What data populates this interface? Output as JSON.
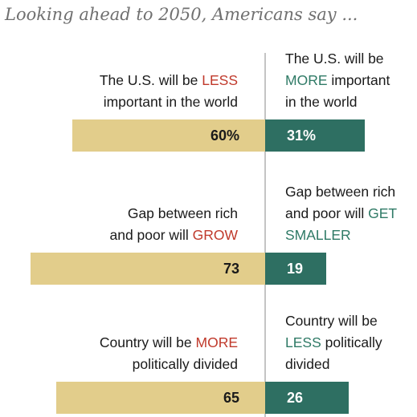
{
  "chart_data": {
    "type": "bar",
    "title": "Looking ahead to 2050, Americans say ...",
    "colors": {
      "left": "#e2cd8b",
      "right": "#2e6f62",
      "left_text": "#c0392b",
      "right_text": "#2f7a66",
      "divider": "#8a8a8a"
    },
    "max_value": 80,
    "rows": [
      {
        "left": {
          "lines": [
            [
              {
                "t": "The U.S. will be "
              },
              {
                "t": "LESS",
                "c": "neg"
              }
            ],
            [
              {
                "t": "important in the world"
              }
            ]
          ],
          "value": 60,
          "label": "60%"
        },
        "right": {
          "lines": [
            [
              {
                "t": "The U.S. will be"
              }
            ],
            [
              {
                "t": "MORE",
                "c": "pos"
              },
              {
                "t": " important"
              }
            ],
            [
              {
                "t": "in the world"
              }
            ]
          ],
          "value": 31,
          "label": "31%"
        }
      },
      {
        "left": {
          "lines": [
            [
              {
                "t": "Gap between rich"
              }
            ],
            [
              {
                "t": "and poor will "
              },
              {
                "t": "GROW",
                "c": "neg"
              }
            ]
          ],
          "value": 73,
          "label": "73"
        },
        "right": {
          "lines": [
            [
              {
                "t": "Gap between rich"
              }
            ],
            [
              {
                "t": "and poor will "
              },
              {
                "t": "GET",
                "c": "pos"
              }
            ],
            [
              {
                "t": "SMALLER",
                "c": "pos"
              }
            ]
          ],
          "value": 19,
          "label": "19"
        }
      },
      {
        "left": {
          "lines": [
            [
              {
                "t": "Country will be "
              },
              {
                "t": "MORE",
                "c": "neg"
              }
            ],
            [
              {
                "t": "politically divided"
              }
            ]
          ],
          "value": 65,
          "label": "65"
        },
        "right": {
          "lines": [
            [
              {
                "t": "Country will be"
              }
            ],
            [
              {
                "t": "LESS",
                "c": "pos"
              },
              {
                "t": " politically"
              }
            ],
            [
              {
                "t": "divided"
              }
            ]
          ],
          "value": 26,
          "label": "26"
        }
      }
    ]
  }
}
